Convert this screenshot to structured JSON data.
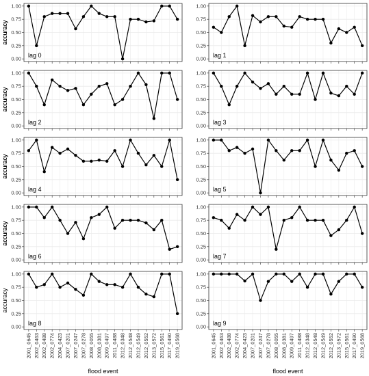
{
  "chart_data": [
    {
      "type": "line",
      "annotation": "lag 0",
      "ylabel": "accuracy",
      "color": "#000000",
      "ylim": [
        -0.05,
        1.05
      ],
      "yticks": [
        {
          "value": 0,
          "label": "0.00"
        },
        {
          "value": 0.25,
          "label": "0.25"
        },
        {
          "value": 0.5,
          "label": "0.50"
        },
        {
          "value": 0.75,
          "label": "0.75"
        },
        {
          "value": 1,
          "label": "1.00"
        }
      ],
      "grid": true,
      "values": [
        1,
        0.25,
        0.8,
        0.86,
        0.86,
        0.86,
        0.57,
        0.8,
        1,
        0.86,
        0.8,
        0.8,
        0,
        0.75,
        0.75,
        0.7,
        0.72,
        1,
        1,
        0.75
      ]
    },
    {
      "type": "line",
      "annotation": "lag 1",
      "ylabel": "accuracy",
      "color": "#000000",
      "ylim": [
        -0.05,
        1.05
      ],
      "yticks": [
        {
          "value": 0,
          "label": "0.00"
        },
        {
          "value": 0.25,
          "label": "0.25"
        },
        {
          "value": 0.5,
          "label": "0.50"
        },
        {
          "value": 0.75,
          "label": "0.75"
        },
        {
          "value": 1,
          "label": "1.00"
        }
      ],
      "grid": true,
      "values": [
        0.6,
        0.5,
        0.8,
        1,
        0.25,
        0.82,
        0.7,
        0.8,
        0.8,
        0.62,
        0.6,
        0.8,
        0.75,
        0.75,
        0.75,
        0.3,
        0.57,
        0.5,
        0.6,
        0.25
      ]
    },
    {
      "type": "line",
      "annotation": "lag 2",
      "ylabel": "accuracy",
      "color": "#000000",
      "ylim": [
        -0.05,
        1.05
      ],
      "yticks": [
        {
          "value": 0,
          "label": "0.00"
        },
        {
          "value": 0.25,
          "label": "0.25"
        },
        {
          "value": 0.5,
          "label": "0.50"
        },
        {
          "value": 0.75,
          "label": "0.75"
        },
        {
          "value": 1,
          "label": "1.00"
        }
      ],
      "grid": true,
      "values": [
        1,
        0.75,
        0.4,
        0.87,
        0.75,
        0.67,
        0.71,
        0.4,
        0.6,
        0.75,
        0.8,
        0.4,
        0.5,
        0.75,
        1,
        0.78,
        0.14,
        1,
        1,
        0.5
      ]
    },
    {
      "type": "line",
      "annotation": "lag 3",
      "ylabel": "accuracy",
      "color": "#000000",
      "ylim": [
        -0.05,
        1.05
      ],
      "yticks": [
        {
          "value": 0,
          "label": "0.00"
        },
        {
          "value": 0.25,
          "label": "0.25"
        },
        {
          "value": 0.5,
          "label": "0.50"
        },
        {
          "value": 0.75,
          "label": "0.75"
        },
        {
          "value": 1,
          "label": "1.00"
        }
      ],
      "grid": true,
      "values": [
        1,
        0.75,
        0.4,
        0.75,
        1,
        0.83,
        0.71,
        0.8,
        0.6,
        0.75,
        0.6,
        0.6,
        1,
        0.5,
        1,
        0.62,
        0.57,
        0.75,
        0.6,
        1
      ]
    },
    {
      "type": "line",
      "annotation": "lag 4",
      "ylabel": "accuracy",
      "color": "#000000",
      "ylim": [
        -0.05,
        1.05
      ],
      "yticks": [
        {
          "value": 0,
          "label": "0.00"
        },
        {
          "value": 0.25,
          "label": "0.25"
        },
        {
          "value": 0.5,
          "label": "0.50"
        },
        {
          "value": 0.75,
          "label": "0.75"
        },
        {
          "value": 1,
          "label": "1.00"
        }
      ],
      "grid": true,
      "values": [
        0.8,
        1,
        0.4,
        0.86,
        0.75,
        0.83,
        0.71,
        0.6,
        0.6,
        0.62,
        0.6,
        0.8,
        0.5,
        1,
        0.75,
        0.53,
        0.71,
        0.5,
        1,
        0.25
      ]
    },
    {
      "type": "line",
      "annotation": "lag 5",
      "ylabel": "accuracy",
      "color": "#000000",
      "ylim": [
        -0.05,
        1.05
      ],
      "yticks": [
        {
          "value": 0,
          "label": "0.00"
        },
        {
          "value": 0.25,
          "label": "0.25"
        },
        {
          "value": 0.5,
          "label": "0.50"
        },
        {
          "value": 0.75,
          "label": "0.75"
        },
        {
          "value": 1,
          "label": "1.00"
        }
      ],
      "grid": true,
      "values": [
        1,
        1,
        0.8,
        0.86,
        0.75,
        0.83,
        0,
        1,
        0.8,
        0.62,
        0.8,
        0.8,
        1,
        0.5,
        1,
        0.62,
        0.43,
        0.75,
        0.8,
        0.5
      ]
    },
    {
      "type": "line",
      "annotation": "lag 6",
      "ylabel": "accuracy",
      "color": "#000000",
      "ylim": [
        -0.05,
        1.05
      ],
      "yticks": [
        {
          "value": 0,
          "label": "0.00"
        },
        {
          "value": 0.25,
          "label": "0.25"
        },
        {
          "value": 0.5,
          "label": "0.50"
        },
        {
          "value": 0.75,
          "label": "0.75"
        },
        {
          "value": 1,
          "label": "1.00"
        }
      ],
      "grid": true,
      "values": [
        1,
        1,
        0.8,
        1,
        0.75,
        0.5,
        0.71,
        0.4,
        0.8,
        0.86,
        1,
        0.6,
        0.75,
        0.75,
        0.75,
        0.7,
        0.57,
        0.75,
        0.2,
        0.25
      ]
    },
    {
      "type": "line",
      "annotation": "lag 7",
      "ylabel": "accuracy",
      "color": "#000000",
      "ylim": [
        -0.05,
        1.05
      ],
      "yticks": [
        {
          "value": 0,
          "label": "0.00"
        },
        {
          "value": 0.25,
          "label": "0.25"
        },
        {
          "value": 0.5,
          "label": "0.50"
        },
        {
          "value": 0.75,
          "label": "0.75"
        },
        {
          "value": 1,
          "label": "1.00"
        }
      ],
      "grid": true,
      "values": [
        0.8,
        0.75,
        0.6,
        0.86,
        0.75,
        1,
        0.86,
        1,
        0.2,
        0.75,
        0.8,
        1,
        0.75,
        0.75,
        0.75,
        0.46,
        0.57,
        0.75,
        1,
        0.5
      ]
    },
    {
      "type": "line",
      "annotation": "lag 8",
      "ylabel": "accuracy",
      "xlabel": "flood event",
      "color": "#000000",
      "ylim": [
        -0.05,
        1.05
      ],
      "yticks": [
        {
          "value": 0,
          "label": "0.00"
        },
        {
          "value": 0.25,
          "label": "0.25"
        },
        {
          "value": 0.5,
          "label": "0.50"
        },
        {
          "value": 0.75,
          "label": "0.75"
        },
        {
          "value": 1,
          "label": "1.00"
        }
      ],
      "grid": true,
      "categories": [
        "2001_0645",
        "2002_0463",
        "2002_0488",
        "2002_0774",
        "2004_0423",
        "2007_0201",
        "2007_0247",
        "2007_0278",
        "2008_0055",
        "2008_0381",
        "2009_0497",
        "2011_0488",
        "2012_0348",
        "2012_0548",
        "2012_0549",
        "2012_0552",
        "2013_0572",
        "2015_0561",
        "2017_0490",
        "2019_0568"
      ],
      "values": [
        1,
        0.75,
        0.8,
        1,
        0.75,
        0.83,
        0.71,
        0.6,
        1,
        0.86,
        0.8,
        0.8,
        0.75,
        1,
        0.75,
        0.62,
        0.57,
        1,
        1,
        0.25
      ]
    },
    {
      "type": "line",
      "annotation": "lag 9",
      "xlabel": "flood event",
      "color": "#000000",
      "ylim": [
        -0.05,
        1.05
      ],
      "yticks": [
        {
          "value": 0,
          "label": "0.00"
        },
        {
          "value": 0.25,
          "label": "0.25"
        },
        {
          "value": 0.5,
          "label": "0.50"
        },
        {
          "value": 0.75,
          "label": "0.75"
        },
        {
          "value": 1,
          "label": "1.00"
        }
      ],
      "grid": true,
      "categories": [
        "2001_0645",
        "2002_0463",
        "2002_0488",
        "2002_0774",
        "2004_0423",
        "2007_0201",
        "2007_0247",
        "2007_0278",
        "2008_0055",
        "2008_0381",
        "2009_0497",
        "2011_0488",
        "2012_0348",
        "2012_0548",
        "2012_0549",
        "2012_0552",
        "2013_0572",
        "2015_0561",
        "2017_0490",
        "2019_0568"
      ],
      "values": [
        1,
        1,
        1,
        1,
        0.87,
        1,
        0.5,
        0.86,
        1,
        1,
        0.86,
        1,
        0.75,
        1,
        1,
        0.62,
        0.86,
        1,
        1,
        0.75
      ]
    }
  ]
}
